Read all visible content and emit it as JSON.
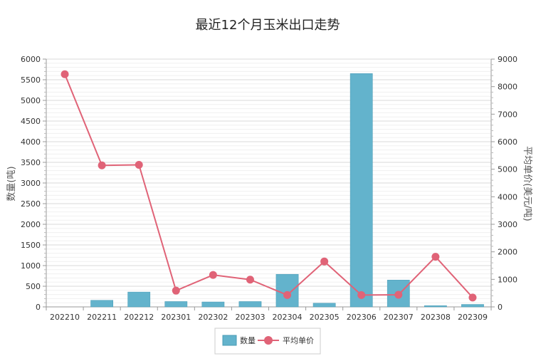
{
  "chart_data": {
    "type": "bar+line",
    "title": "最近12个月玉米出口走势",
    "categories": [
      "202210",
      "202211",
      "202212",
      "202301",
      "202302",
      "202303",
      "202304",
      "202305",
      "202306",
      "202307",
      "202308",
      "202309"
    ],
    "series": [
      {
        "name": "数量",
        "type": "bar",
        "axis": "left",
        "color": "#63b3cc",
        "values": [
          0,
          160,
          360,
          130,
          120,
          130,
          790,
          90,
          5650,
          650,
          30,
          60
        ]
      },
      {
        "name": "平均单价",
        "type": "line",
        "axis": "right",
        "color": "#e06377",
        "values": [
          8450,
          5140,
          5160,
          590,
          1160,
          990,
          430,
          1650,
          430,
          440,
          1820,
          340
        ]
      }
    ],
    "y_left": {
      "label": "数量(吨)",
      "ylim": [
        0,
        6000
      ],
      "ticks": [
        "0",
        "500",
        "1000",
        "1500",
        "2000",
        "2500",
        "3000",
        "3500",
        "4000",
        "4500",
        "5000",
        "5500",
        "6000"
      ]
    },
    "y_right": {
      "label": "平均单价(美元/吨)",
      "ylim": [
        0,
        9000
      ],
      "ticks": [
        "0",
        "1000",
        "2000",
        "3000",
        "4000",
        "5000",
        "6000",
        "7000",
        "8000",
        "9000"
      ]
    },
    "grid": true,
    "legend": "bottom-center"
  }
}
